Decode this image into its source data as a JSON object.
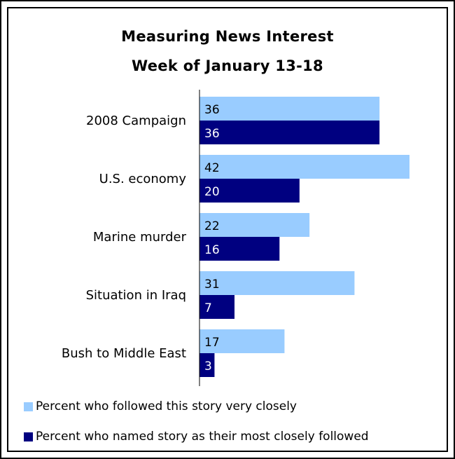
{
  "chart_data": {
    "type": "bar",
    "orientation": "horizontal",
    "title": "Measuring News Interest",
    "subtitle": "Week of January 13-18",
    "categories": [
      "2008 Campaign",
      "U.S. economy",
      "Marine murder",
      "Situation in Iraq",
      "Bush to Middle East"
    ],
    "series": [
      {
        "name": "Percent who followed this story very closely",
        "values": [
          36,
          42,
          22,
          31,
          17
        ],
        "color": "#99ccff",
        "label_color": "#000000"
      },
      {
        "name": "Percent who named story as their most closely followed",
        "values": [
          36,
          20,
          16,
          7,
          3
        ],
        "color": "#000080",
        "label_color": "#ffffff"
      }
    ],
    "xlim": [
      0,
      42
    ],
    "grid": false,
    "legend_position": "bottom"
  }
}
